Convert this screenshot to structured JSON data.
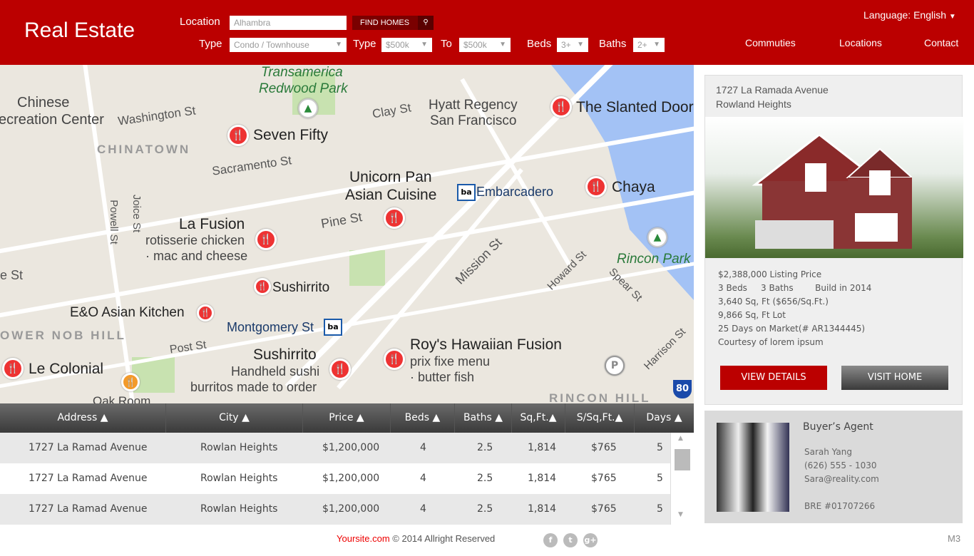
{
  "header": {
    "logo": "Real Estate",
    "location_label": "Location",
    "location_value": "Alhambra",
    "find_button": "FIND HOMES",
    "type_label": "Type",
    "type_value": "Condo / Townhouse",
    "price_type_label": "Type",
    "price_from": "$500k",
    "to_label": "To",
    "price_to": "$500k",
    "beds_label": "Beds",
    "beds_value": "3+",
    "baths_label": "Baths",
    "baths_value": "2+",
    "language_label": "Language:",
    "language_value": "English",
    "nav": [
      "Commuties",
      "Locations",
      "Contact"
    ]
  },
  "map": {
    "labels": [
      "Transamerica",
      "Redwood Park",
      "Chinese",
      "ecreation Center",
      "Washington St",
      "Seven Fifty",
      "CHINATOWN",
      "Clay St",
      "Hyatt Regency",
      "San Francisco",
      "The Slanted Door",
      "Sacramento St",
      "Unicorn Pan",
      "Asian Cuisine",
      "Embarcadero",
      "Chaya",
      "La Fusion",
      "rotisserie chicken",
      "· mac and cheese",
      "Pine St",
      "Mission St",
      "Howard St",
      "Spear St",
      "Rincon Park",
      "Sushirrito",
      "E&O Asian Kitchen",
      "Montgomery St",
      "OWER NOB HILL",
      "Post St",
      "Sushirrito",
      "Handheld sushi",
      "burritos made to order",
      "Roy's Hawaiian Fusion",
      "prix fixe menu",
      "· butter fish",
      "Harrison St",
      "Le Colonial",
      "RINCON HILL",
      "Powell St",
      "Joice St",
      "e St",
      "Oak Room"
    ]
  },
  "table": {
    "columns": [
      "Address",
      "City",
      "Price",
      "Beds",
      "Baths",
      "Sq,Ft.",
      "S/Sq,Ft.",
      "Days"
    ],
    "rows": [
      [
        "1727 La Ramad Avenue",
        "Rowlan Heights",
        "$1,200,000",
        "4",
        "2.5",
        "1,814",
        "$765",
        "5"
      ],
      [
        "1727 La Ramad Avenue",
        "Rowlan Heights",
        "$1,200,000",
        "4",
        "2.5",
        "1,814",
        "$765",
        "5"
      ],
      [
        "1727 La Ramad Avenue",
        "Rowlan Heights",
        "$1,200,000",
        "4",
        "2.5",
        "1,814",
        "$765",
        "5"
      ]
    ]
  },
  "listing": {
    "address_line1": "1727 La Ramada Avenue",
    "address_line2": "Rowland Heights",
    "price": "$2,388,000 Listing Price",
    "beds": "3 Beds",
    "baths": "3 Baths",
    "built": "Build in 2014",
    "sqft": "3,640 Sq, Ft ($656/Sq.Ft.)",
    "lot": "9,866 Sq, Ft Lot",
    "days": "25 Days on Market(# AR1344445)",
    "courtesy": "Courtesy of lorem ipsum",
    "view_details": "VIEW DETAILS",
    "visit_home": "VISIT HOME"
  },
  "agent": {
    "title": "Buyer’s Agent",
    "name": "Sarah Yang",
    "phone": "(626) 555 - 1030",
    "email": "Sara@reality.com",
    "bre": "BRE #01707266"
  },
  "footer": {
    "site": "Yoursite.com",
    "copyright": " © 2014 Allright Reserved",
    "social": [
      "f",
      "t",
      "g+"
    ],
    "page_code": "M3"
  },
  "colors": {
    "brand": "#bb0000",
    "header_dark": "#7a0000"
  }
}
